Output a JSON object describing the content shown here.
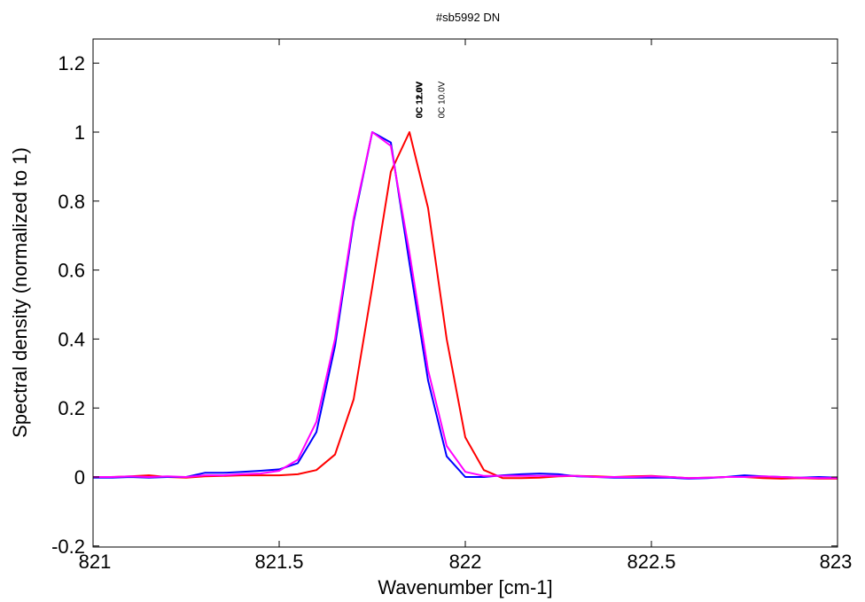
{
  "chart_data": {
    "type": "line",
    "title": "#sb5992 DN",
    "xlabel": "Wavenumber [cm-1]",
    "ylabel": "Spectral density (normalized to 1)",
    "xlim": [
      821,
      823
    ],
    "ylim": [
      -0.2,
      1.25
    ],
    "xticks": [
      821,
      821.5,
      822,
      822.5,
      823
    ],
    "xtick_labels": [
      "821",
      "821.5",
      "822",
      "822.5",
      "823"
    ],
    "yticks": [
      -0.2,
      0,
      0.2,
      0.4,
      0.6,
      0.8,
      1,
      1.2
    ],
    "ytick_labels": [
      "-0.2",
      "0",
      "0.2",
      "0.4",
      "0.6",
      "0.8",
      "1",
      "1.2"
    ],
    "grid": false,
    "series": [
      {
        "color": "#ff0000",
        "x": [
          821,
          821.05,
          821.1,
          821.15,
          821.2,
          821.25,
          821.3,
          821.35,
          821.4,
          821.45,
          821.5,
          821.55,
          821.6,
          821.65,
          821.7,
          821.75,
          821.8,
          821.85,
          821.9,
          821.95,
          822,
          822.05,
          822.1,
          822.15,
          822.2,
          822.25,
          822.3,
          822.35,
          822.4,
          822.45,
          822.5,
          822.55,
          822.6,
          822.65,
          822.7,
          822.75,
          822.8,
          822.85,
          822.9,
          822.95,
          823
        ],
        "y": [
          0.0,
          0.0,
          0.002,
          0.005,
          0.0,
          -0.002,
          0.002,
          0.003,
          0.005,
          0.005,
          0.005,
          0.008,
          0.02,
          0.065,
          0.225,
          0.55,
          0.885,
          1.0,
          0.78,
          0.4,
          0.115,
          0.02,
          -0.003,
          -0.003,
          -0.002,
          0.002,
          0.003,
          0.002,
          0.0,
          0.002,
          0.003,
          0.0,
          -0.003,
          -0.002,
          0.0,
          0.0,
          -0.003,
          -0.005,
          -0.003,
          -0.005,
          -0.005
        ],
        "x_shift_note": ""
      },
      {
        "color": "#0000ff",
        "x": [
          821,
          821.05,
          821.1,
          821.15,
          821.2,
          821.25,
          821.3,
          821.35,
          821.4,
          821.45,
          821.5,
          821.55,
          821.6,
          821.65,
          821.7,
          821.75,
          821.8,
          821.85,
          821.9,
          821.95,
          822,
          822.05,
          822.1,
          822.15,
          822.2,
          822.25,
          822.3,
          822.35,
          822.4,
          822.45,
          822.5,
          822.55,
          822.6,
          822.65,
          822.7,
          822.75,
          822.8,
          822.85,
          822.9,
          822.95,
          823
        ],
        "y": [
          -0.002,
          -0.002,
          0.0,
          -0.002,
          0.0,
          0.0,
          0.012,
          0.012,
          0.015,
          0.018,
          0.022,
          0.04,
          0.13,
          0.38,
          0.74,
          1.0,
          0.97,
          0.62,
          0.28,
          0.06,
          0.0,
          0.0,
          0.005,
          0.008,
          0.01,
          0.008,
          0.002,
          0.0,
          -0.002,
          -0.002,
          -0.002,
          -0.002,
          -0.005,
          -0.003,
          0.0,
          0.005,
          0.002,
          0.0,
          -0.002,
          0.0,
          -0.002
        ]
      },
      {
        "color": "#ff00ff",
        "x": [
          821,
          821.05,
          821.1,
          821.15,
          821.2,
          821.25,
          821.3,
          821.35,
          821.4,
          821.45,
          821.5,
          821.55,
          821.6,
          821.65,
          821.7,
          821.75,
          821.8,
          821.85,
          821.9,
          821.95,
          822,
          822.05,
          822.1,
          822.15,
          822.2,
          822.25,
          822.3,
          822.35,
          822.4,
          822.45,
          822.5,
          822.55,
          822.6,
          822.65,
          822.7,
          822.75,
          822.8,
          822.85,
          822.9,
          822.95,
          823
        ],
        "y": [
          0.0,
          0.0,
          0.002,
          0.0,
          0.002,
          0.0,
          0.005,
          0.005,
          0.008,
          0.01,
          0.018,
          0.05,
          0.16,
          0.4,
          0.75,
          1.0,
          0.96,
          0.65,
          0.31,
          0.09,
          0.015,
          0.003,
          0.003,
          0.003,
          0.003,
          0.003,
          0.003,
          0.0,
          0.0,
          0.0,
          0.002,
          0.0,
          -0.003,
          -0.002,
          0.0,
          0.0,
          0.002,
          0.0,
          -0.002,
          -0.003,
          -0.003
        ]
      }
    ],
    "peak_labels": [
      {
        "text": "0C 11.0V",
        "x": 821.875,
        "color": "#000000"
      },
      {
        "text": "0C 12.0V",
        "x": 821.875,
        "color": "#000000"
      },
      {
        "text": "0C 10.0V",
        "x": 821.935,
        "color": "#555555"
      }
    ]
  }
}
